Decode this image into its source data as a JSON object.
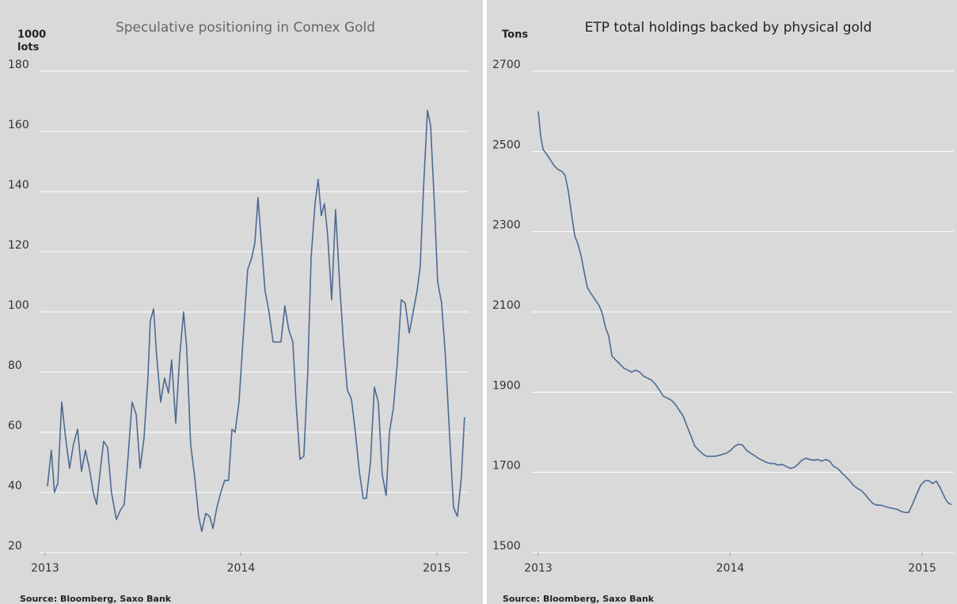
{
  "chart_data": [
    {
      "type": "line",
      "title": "Speculative positioning in Comex Gold",
      "ylabel": [
        "1000",
        "lots"
      ],
      "source": "Source: Bloomberg, Saxo Bank",
      "xlim": [
        2012.972,
        2015.162
      ],
      "xticks": [
        2013,
        2014,
        2015
      ],
      "ylim": [
        20,
        180
      ],
      "yticks": [
        20,
        40,
        60,
        80,
        100,
        120,
        140,
        160,
        180
      ],
      "grid": true,
      "x": [
        2013.012,
        2013.032,
        2013.048,
        2013.065,
        2013.085,
        2013.105,
        2013.125,
        2013.145,
        2013.166,
        2013.186,
        2013.206,
        2013.226,
        2013.246,
        2013.263,
        2013.283,
        2013.299,
        2013.319,
        2013.339,
        2013.364,
        2013.384,
        2013.404,
        2013.424,
        2013.444,
        2013.465,
        2013.485,
        2013.505,
        2013.525,
        2013.537,
        2013.554,
        2013.57,
        2013.59,
        2013.61,
        2013.63,
        2013.646,
        2013.667,
        2013.687,
        2013.707,
        2013.723,
        2013.743,
        2013.764,
        2013.784,
        2013.8,
        2013.82,
        2013.84,
        2013.857,
        2013.877,
        2013.897,
        2013.917,
        2013.937,
        2013.954,
        2013.97,
        2013.99,
        2014.01,
        2014.034,
        2014.055,
        2014.071,
        2014.087,
        2014.103,
        2014.123,
        2014.143,
        2014.164,
        2014.184,
        2014.204,
        2014.224,
        2014.244,
        2014.265,
        2014.281,
        2014.301,
        2014.321,
        2014.341,
        2014.358,
        2014.378,
        2014.394,
        2014.41,
        2014.426,
        2014.442,
        2014.463,
        2014.483,
        2014.503,
        2014.523,
        2014.543,
        2014.564,
        2014.584,
        2014.604,
        2014.624,
        2014.64,
        2014.661,
        2014.681,
        2014.701,
        2014.721,
        2014.741,
        2014.758,
        2014.778,
        2014.798,
        2014.818,
        2014.838,
        2014.859,
        2014.879,
        2014.899,
        2014.915,
        2014.931,
        2014.952,
        2014.968,
        2014.988,
        2015.004,
        2015.024,
        2015.044,
        2015.065,
        2015.085,
        2015.105,
        2015.125,
        2015.141
      ],
      "series": [
        {
          "color": "#4c6a92",
          "values": [
            42,
            54,
            40,
            43,
            70,
            58,
            48,
            56,
            61,
            47,
            54,
            48,
            40,
            36,
            48,
            57,
            55,
            40,
            31,
            34,
            36,
            52,
            70,
            66,
            48,
            58,
            78,
            97,
            101,
            85,
            70,
            78,
            73,
            84,
            63,
            85,
            100,
            88,
            56,
            45,
            32,
            27,
            33,
            32,
            28,
            35,
            40,
            44,
            44,
            61,
            60,
            70,
            90,
            114,
            118,
            123,
            138,
            124,
            107,
            100,
            90,
            90,
            90,
            102,
            94,
            90,
            70,
            51,
            52,
            80,
            118,
            136,
            144,
            132,
            136,
            126,
            104,
            134,
            110,
            90,
            74,
            71,
            60,
            47,
            38,
            38,
            50,
            75,
            70,
            46,
            39,
            60,
            68,
            83,
            104,
            103,
            93,
            100,
            107,
            115,
            140,
            167,
            162,
            135,
            110,
            103,
            85,
            59,
            35,
            32,
            45,
            65
          ]
        }
      ]
    },
    {
      "type": "line",
      "title": "ETP total holdings  backed by physical gold",
      "ylabel": [
        "Tons"
      ],
      "source": "Source: Bloomberg, Saxo Bank",
      "xlim": [
        2012.967,
        2015.165
      ],
      "xticks": [
        2013,
        2014,
        2015
      ],
      "ylim": [
        1500,
        2700
      ],
      "yticks": [
        1500,
        1700,
        1900,
        2100,
        2300,
        2500,
        2700
      ],
      "grid": true,
      "x": [
        2013.0,
        2013.012,
        2013.025,
        2013.041,
        2013.062,
        2013.082,
        2013.103,
        2013.124,
        2013.14,
        2013.157,
        2013.173,
        2013.19,
        2013.206,
        2013.223,
        2013.239,
        2013.256,
        2013.276,
        2013.297,
        2013.318,
        2013.334,
        2013.351,
        2013.367,
        2013.384,
        2013.404,
        2013.425,
        2013.445,
        2013.466,
        2013.487,
        2013.507,
        2013.528,
        2013.548,
        2013.569,
        2013.59,
        2013.61,
        2013.631,
        2013.652,
        2013.672,
        2013.693,
        2013.713,
        2013.734,
        2013.755,
        2013.775,
        2013.796,
        2013.816,
        2013.837,
        2013.858,
        2013.878,
        2013.899,
        2013.92,
        2013.94,
        2013.961,
        2013.981,
        2014.002,
        2014.023,
        2014.043,
        2014.064,
        2014.085,
        2014.105,
        2014.126,
        2014.146,
        2014.167,
        2014.188,
        2014.208,
        2014.229,
        2014.249,
        2014.27,
        2014.291,
        2014.311,
        2014.332,
        2014.353,
        2014.373,
        2014.394,
        2014.414,
        2014.435,
        2014.456,
        2014.476,
        2014.497,
        2014.518,
        2014.538,
        2014.559,
        2014.579,
        2014.6,
        2014.621,
        2014.641,
        2014.662,
        2014.682,
        2014.703,
        2014.724,
        2014.744,
        2014.765,
        2014.786,
        2014.806,
        2014.827,
        2014.847,
        2014.868,
        2014.889,
        2014.909,
        2014.93,
        2014.951,
        2014.971,
        2014.992,
        2015.012,
        2015.033,
        2015.054,
        2015.074,
        2015.095,
        2015.115,
        2015.128,
        2015.14,
        2015.153
      ],
      "series": [
        {
          "color": "#4c6a92",
          "values": [
            2600,
            2540,
            2505,
            2495,
            2480,
            2465,
            2455,
            2450,
            2440,
            2400,
            2345,
            2290,
            2270,
            2240,
            2200,
            2160,
            2145,
            2130,
            2115,
            2095,
            2060,
            2040,
            1990,
            1980,
            1970,
            1960,
            1955,
            1950,
            1955,
            1950,
            1940,
            1935,
            1930,
            1920,
            1905,
            1890,
            1885,
            1880,
            1870,
            1855,
            1840,
            1815,
            1790,
            1765,
            1755,
            1745,
            1740,
            1740,
            1740,
            1742,
            1745,
            1748,
            1755,
            1765,
            1770,
            1768,
            1755,
            1748,
            1742,
            1735,
            1730,
            1725,
            1722,
            1722,
            1718,
            1720,
            1715,
            1710,
            1712,
            1720,
            1730,
            1735,
            1732,
            1730,
            1732,
            1728,
            1732,
            1728,
            1715,
            1710,
            1700,
            1690,
            1680,
            1668,
            1660,
            1655,
            1645,
            1632,
            1622,
            1618,
            1618,
            1615,
            1612,
            1610,
            1608,
            1603,
            1600,
            1600,
            1622,
            1645,
            1668,
            1678,
            1680,
            1672,
            1678,
            1660,
            1640,
            1628,
            1622,
            1620
          ]
        }
      ]
    }
  ]
}
